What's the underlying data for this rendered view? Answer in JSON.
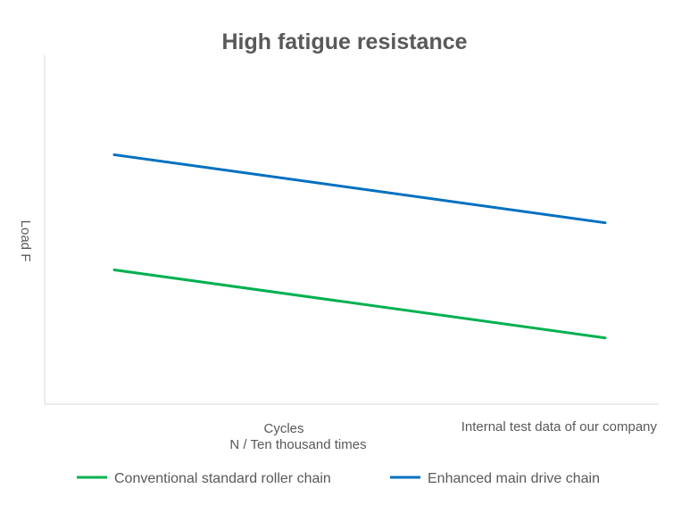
{
  "chart_data": {
    "type": "line",
    "title": "High fatigue resistance",
    "xlabel": "Cycles",
    "xlabel_sub": "N / Ten thousand times",
    "ylabel": "Load F",
    "annotation": "Internal test data of our company",
    "x": [
      0,
      1
    ],
    "xlim": [
      0,
      1
    ],
    "ylim": [
      0,
      100
    ],
    "grid": false,
    "legend_position": "bottom",
    "series": [
      {
        "name": "Conventional standard roller chain",
        "color": "#00b050",
        "values": [
          38.5,
          19
        ]
      },
      {
        "name": "Enhanced main drive chain",
        "color": "#0070c0",
        "values": [
          71.5,
          52
        ]
      }
    ]
  }
}
